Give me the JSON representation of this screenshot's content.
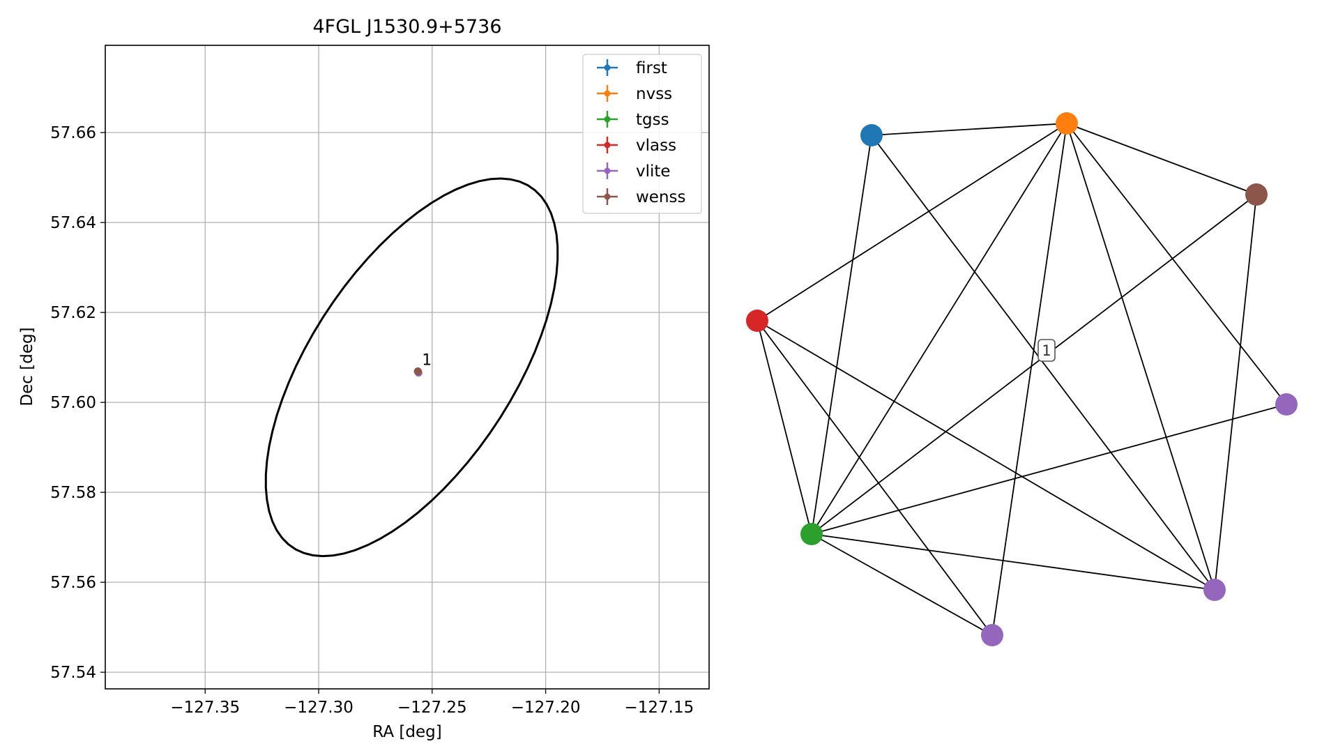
{
  "chart_data": [
    {
      "type": "scatter",
      "title": "4FGL J1530.9+5736",
      "xlabel": "RA [deg]",
      "ylabel": "Dec [deg]",
      "xlim": [
        -127.394,
        -127.128
      ],
      "ylim": [
        57.5363,
        57.6794
      ],
      "grid": true,
      "legend_position": "top-right",
      "x_ticks": [
        -127.35,
        -127.3,
        -127.25,
        -127.2,
        -127.15
      ],
      "x_tick_labels": [
        "−127.35",
        "−127.30",
        "−127.25",
        "−127.20",
        "−127.15"
      ],
      "y_ticks": [
        57.54,
        57.56,
        57.58,
        57.6,
        57.62,
        57.64,
        57.66
      ],
      "y_tick_labels": [
        "57.54",
        "57.56",
        "57.58",
        "57.60",
        "57.62",
        "57.64",
        "57.66"
      ],
      "series": [
        {
          "name": "first",
          "color": "#1f77b4",
          "x": -127.2563,
          "y": 57.6069
        },
        {
          "name": "nvss",
          "color": "#ff7f0e",
          "x": -127.2563,
          "y": 57.6069
        },
        {
          "name": "tgss",
          "color": "#2ca02c",
          "x": -127.2563,
          "y": 57.6069
        },
        {
          "name": "vlass",
          "color": "#d62728",
          "x": -127.2563,
          "y": 57.6069
        },
        {
          "name": "vlite",
          "color": "#9467bd",
          "x": -127.256,
          "y": 57.6066
        },
        {
          "name": "wenss",
          "color": "#8c564b",
          "x": -127.2563,
          "y": 57.6069
        }
      ],
      "cluster_label": {
        "text": "1",
        "x": -127.2563,
        "y": 57.6069
      },
      "ellipse": {
        "center": [
          -127.259,
          57.6078
        ],
        "semi_axis_ra": 0.0705,
        "semi_axis_dec": 0.0305,
        "angle_deg": 27,
        "color": "#000000"
      }
    },
    {
      "type": "network",
      "nodes": [
        {
          "id": "first",
          "color": "#1f77b4"
        },
        {
          "id": "nvss",
          "color": "#ff7f0e"
        },
        {
          "id": "wenss",
          "color": "#8c564b"
        },
        {
          "id": "vlass",
          "color": "#d62728"
        },
        {
          "id": "vlite-a",
          "color": "#9467bd"
        },
        {
          "id": "tgss",
          "color": "#2ca02c"
        },
        {
          "id": "vlite-b",
          "color": "#9467bd"
        },
        {
          "id": "vlite-c",
          "color": "#9467bd"
        }
      ],
      "edges": [
        [
          "first",
          "nvss"
        ],
        [
          "first",
          "tgss"
        ],
        [
          "first",
          "vlite-b"
        ],
        [
          "nvss",
          "vlass"
        ],
        [
          "nvss",
          "wenss"
        ],
        [
          "nvss",
          "tgss"
        ],
        [
          "nvss",
          "vlite-c"
        ],
        [
          "nvss",
          "vlite-a"
        ],
        [
          "nvss",
          "vlite-b"
        ],
        [
          "wenss",
          "tgss"
        ],
        [
          "wenss",
          "vlite-b"
        ],
        [
          "vlass",
          "tgss"
        ],
        [
          "vlass",
          "vlite-c"
        ],
        [
          "vlass",
          "vlite-b"
        ],
        [
          "tgss",
          "vlite-a"
        ],
        [
          "tgss",
          "vlite-c"
        ],
        [
          "tgss",
          "vlite-b"
        ]
      ],
      "edge_label": "1"
    }
  ]
}
